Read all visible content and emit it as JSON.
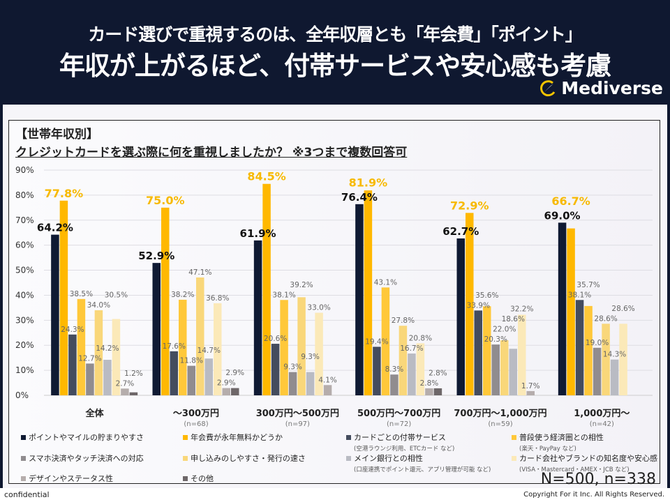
{
  "header": {
    "line1": "カード選びで重視するのは、全年収層とも「年会費」「ポイント」",
    "line2": "年収が上がるほど、付帯サービスや安心感も考慮",
    "logo_text": "Mediverse"
  },
  "chart_data": {
    "type": "bar",
    "title": "【世帯年収別】",
    "subtitle": "クレジットカードを選ぶ際に何を重視しましたか？ ※3つまで複数回答可",
    "ylim": [
      0,
      90
    ],
    "yticks": [
      "0%",
      "10%",
      "20%",
      "30%",
      "40%",
      "50%",
      "60%",
      "70%",
      "80%",
      "90%"
    ],
    "grid": true,
    "legend_position": "bottom",
    "categories": [
      "全体",
      "～300万円",
      "300万円～500万円",
      "500万円～700万円",
      "700万円～1,000万円",
      "1,000万円～"
    ],
    "category_notes": [
      "",
      "(n=68)",
      "(n=97)",
      "(n=72)",
      "(n=59)",
      "(n=42)"
    ],
    "series": [
      {
        "name": "ポイントやマイルの貯まりやすさ",
        "color": "#0f1a33",
        "values": [
          64.2,
          52.9,
          61.9,
          76.4,
          62.7,
          69.0
        ]
      },
      {
        "name": "年会費が永年無料かどうか",
        "color": "#ffb800",
        "values": [
          77.8,
          75.0,
          84.5,
          81.9,
          72.9,
          66.7
        ]
      },
      {
        "name": "カードごとの付帯サービス",
        "note": "(空港ラウンジ利用、ETCカード など)",
        "color": "#444c5e",
        "values": [
          24.3,
          17.6,
          20.6,
          19.4,
          33.9,
          38.1
        ]
      },
      {
        "name": "普段使う経済圏との相性",
        "note": "(楽天・PayPay など)",
        "color": "#ffc83a",
        "values": [
          38.5,
          38.2,
          38.1,
          43.1,
          35.6,
          35.7
        ]
      },
      {
        "name": "スマホ決済やタッチ決済への対応",
        "color": "#908c8f",
        "values": [
          12.7,
          11.8,
          9.3,
          8.3,
          20.3,
          19.0
        ]
      },
      {
        "name": "申し込みのしやすさ・発行の速さ",
        "color": "#f9d77a",
        "values": [
          34.0,
          47.1,
          39.2,
          27.8,
          22.0,
          28.6
        ]
      },
      {
        "name": "メイン銀行との相性",
        "note": "(口座連携でポイント還元、アプリ管理が可能 など)",
        "color": "#b9bbc3",
        "values": [
          14.2,
          14.7,
          9.3,
          16.7,
          18.6,
          14.3
        ]
      },
      {
        "name": "カード会社やブランドの知名度や安心感",
        "note": "(VISA・Mastercard・AMEX・JCB など)",
        "color": "#fbe9b8",
        "values": [
          30.5,
          36.8,
          33.0,
          20.8,
          32.2,
          28.6
        ]
      },
      {
        "name": "デザインやステータス性",
        "color": "#b5adac",
        "values": [
          2.7,
          2.9,
          4.1,
          2.8,
          1.7,
          0
        ]
      },
      {
        "name": "その他",
        "color": "#6e6769",
        "values": [
          1.2,
          2.9,
          0,
          2.8,
          0,
          0
        ]
      }
    ]
  },
  "sample_note": "N=500, n=338",
  "footer": {
    "left": "confidential",
    "right": "Copyright For it Inc. All Rights Reserved."
  }
}
